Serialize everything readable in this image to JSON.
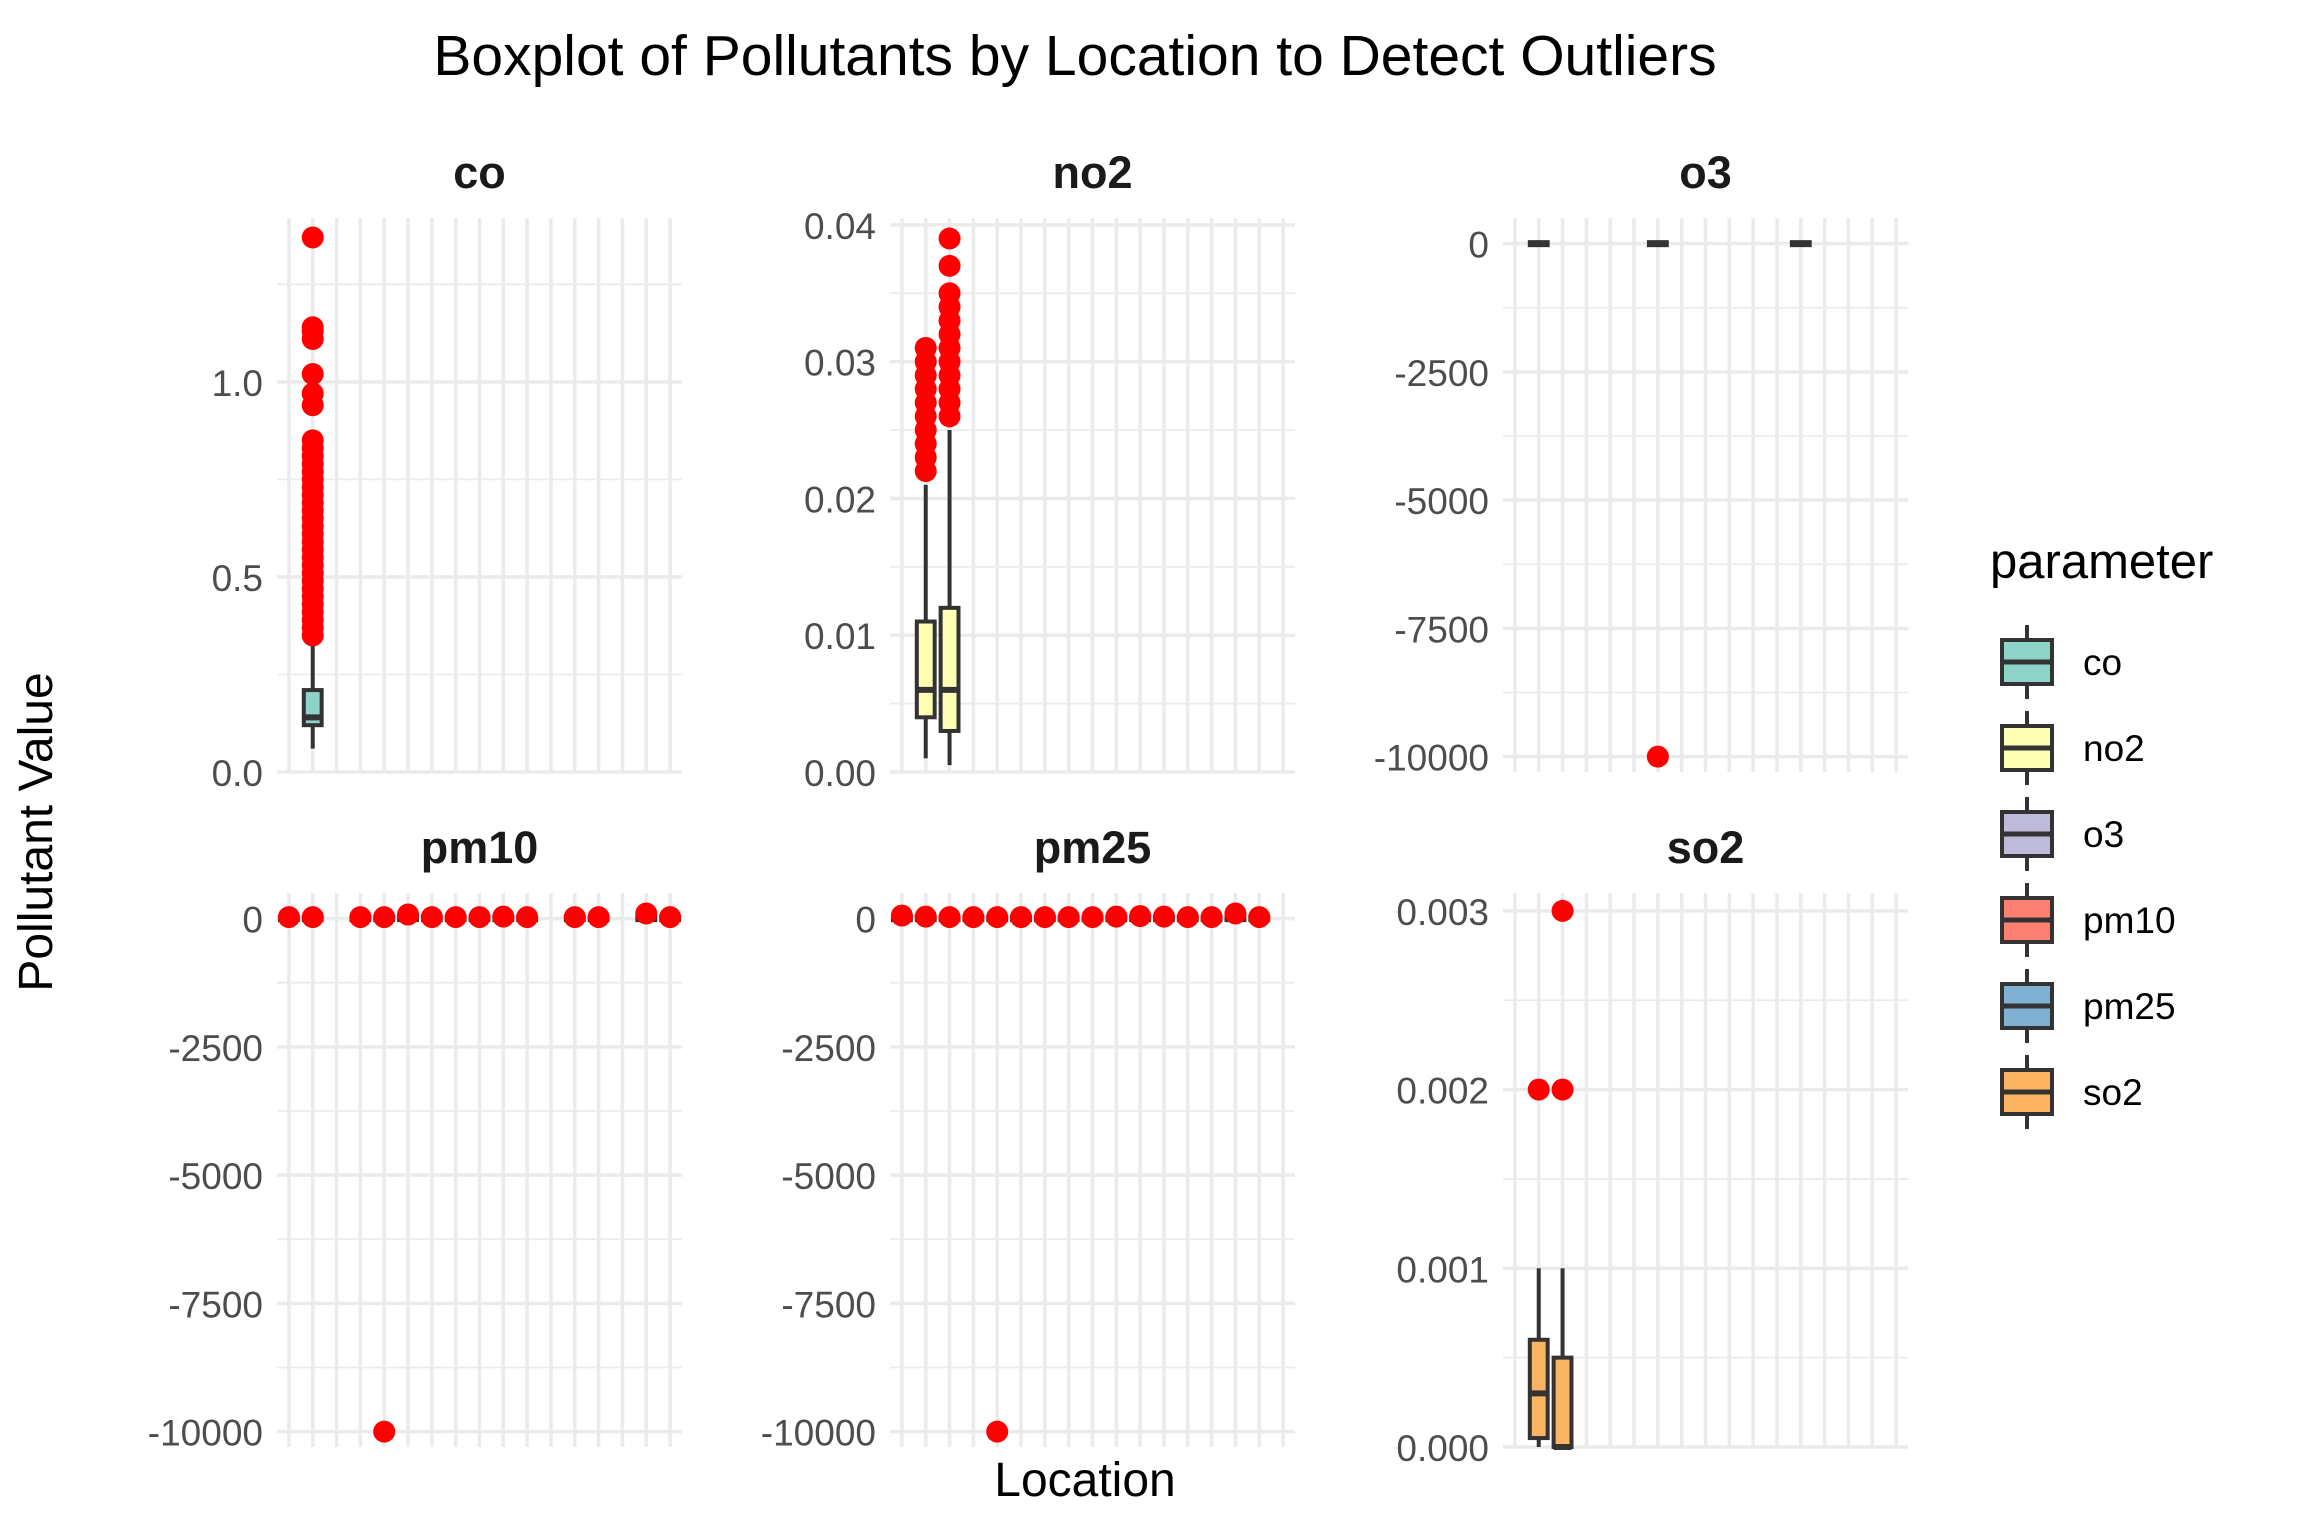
{
  "title": "Boxplot of Pollutants by Location to Detect Outliers",
  "xlabel": "Location",
  "ylabel": "Pollutant Value",
  "legend": {
    "title": "parameter",
    "items": [
      {
        "label": "co",
        "color": "#8DD3C7"
      },
      {
        "label": "no2",
        "color": "#FFFFB3"
      },
      {
        "label": "o3",
        "color": "#BEBADA"
      },
      {
        "label": "pm10",
        "color": "#FB8072"
      },
      {
        "label": "pm25",
        "color": "#80B1D3"
      },
      {
        "label": "so2",
        "color": "#FDB462"
      }
    ]
  },
  "colors": {
    "outlier": "#FF0000",
    "grid": "#EBEBEB",
    "box_line": "#333333",
    "text": "#000000",
    "tick_text": "#4D4D4D"
  },
  "chart_data": [
    {
      "type": "boxplot",
      "facet": "co",
      "fill": "#8DD3C7",
      "ylim": [
        0,
        1.42
      ],
      "yticks": [
        0.0,
        0.5,
        1.0
      ],
      "ytick_labels": [
        "0.0",
        "0.5",
        "1.0"
      ],
      "n_locations": 16,
      "boxes": [
        {
          "loc": 2,
          "whisker_low": 0.06,
          "q1": 0.12,
          "median": 0.14,
          "q3": 0.21,
          "whisker_high": 0.34,
          "outliers": [
            0.35,
            0.37,
            0.39,
            0.41,
            0.43,
            0.45,
            0.47,
            0.49,
            0.51,
            0.53,
            0.55,
            0.57,
            0.59,
            0.61,
            0.63,
            0.65,
            0.67,
            0.69,
            0.71,
            0.73,
            0.75,
            0.77,
            0.79,
            0.81,
            0.83,
            0.85,
            0.94,
            0.97,
            1.02,
            1.11,
            1.13,
            1.14,
            1.37
          ]
        }
      ]
    },
    {
      "type": "boxplot",
      "facet": "no2",
      "fill": "#FFFFB3",
      "ylim": [
        0,
        0.0405
      ],
      "yticks": [
        0.0,
        0.01,
        0.02,
        0.03,
        0.04
      ],
      "ytick_labels": [
        "0.00",
        "0.01",
        "0.02",
        "0.03",
        "0.04"
      ],
      "n_locations": 16,
      "boxes": [
        {
          "loc": 2,
          "whisker_low": 0.001,
          "q1": 0.004,
          "median": 0.006,
          "q3": 0.011,
          "whisker_high": 0.021,
          "outliers": [
            0.022,
            0.023,
            0.024,
            0.025,
            0.026,
            0.027,
            0.028,
            0.029,
            0.03,
            0.031
          ]
        },
        {
          "loc": 3,
          "whisker_low": 0.0005,
          "q1": 0.003,
          "median": 0.006,
          "q3": 0.012,
          "whisker_high": 0.025,
          "outliers": [
            0.026,
            0.027,
            0.028,
            0.029,
            0.03,
            0.031,
            0.032,
            0.033,
            0.034,
            0.035,
            0.037,
            0.039
          ]
        }
      ]
    },
    {
      "type": "boxplot",
      "facet": "o3",
      "fill": "#BEBADA",
      "ylim": [
        -10300,
        500
      ],
      "yticks": [
        0,
        -2500,
        -5000,
        -7500,
        -10000
      ],
      "ytick_labels": [
        "0",
        "-2500",
        "-5000",
        "-7500",
        "-10000"
      ],
      "n_locations": 16,
      "boxes": [
        {
          "loc": 2,
          "whisker_low": 0,
          "q1": 0,
          "median": 0,
          "q3": 0,
          "whisker_high": 0,
          "outliers": []
        },
        {
          "loc": 7,
          "whisker_low": 0,
          "q1": 0,
          "median": 0,
          "q3": 0,
          "whisker_high": 0,
          "outliers": [
            -10000
          ]
        },
        {
          "loc": 13,
          "whisker_low": 0,
          "q1": 0,
          "median": 0,
          "q3": 0,
          "whisker_high": 0,
          "outliers": []
        }
      ]
    },
    {
      "type": "boxplot",
      "facet": "pm10",
      "fill": "#FB8072",
      "ylim": [
        -10300,
        500
      ],
      "yticks": [
        0,
        -2500,
        -5000,
        -7500,
        -10000
      ],
      "ytick_labels": [
        "0",
        "-2500",
        "-5000",
        "-7500",
        "-10000"
      ],
      "n_locations": 16,
      "boxes": [
        {
          "loc": 1,
          "whisker_low": 0,
          "q1": 0,
          "median": 0,
          "q3": 0,
          "whisker_high": 0,
          "outliers": [
            30
          ]
        },
        {
          "loc": 2,
          "whisker_low": 0,
          "q1": 0,
          "median": 0,
          "q3": 0,
          "whisker_high": 0,
          "outliers": [
            30
          ]
        },
        {
          "loc": 4,
          "whisker_low": 0,
          "q1": 0,
          "median": 0,
          "q3": 0,
          "whisker_high": 0,
          "outliers": [
            30
          ]
        },
        {
          "loc": 5,
          "whisker_low": 0,
          "q1": 0,
          "median": 0,
          "q3": 0,
          "whisker_high": 0,
          "outliers": [
            30,
            -10000
          ]
        },
        {
          "loc": 6,
          "whisker_low": 0,
          "q1": 0,
          "median": 0,
          "q3": 0,
          "whisker_high": 0,
          "outliers": [
            80
          ]
        },
        {
          "loc": 7,
          "whisker_low": 0,
          "q1": 0,
          "median": 0,
          "q3": 0,
          "whisker_high": 0,
          "outliers": [
            30
          ]
        },
        {
          "loc": 8,
          "whisker_low": 0,
          "q1": 0,
          "median": 0,
          "q3": 0,
          "whisker_high": 0,
          "outliers": [
            30
          ]
        },
        {
          "loc": 9,
          "whisker_low": 0,
          "q1": 0,
          "median": 0,
          "q3": 0,
          "whisker_high": 0,
          "outliers": [
            30
          ]
        },
        {
          "loc": 10,
          "whisker_low": 0,
          "q1": 0,
          "median": 0,
          "q3": 0,
          "whisker_high": 0,
          "outliers": [
            40
          ]
        },
        {
          "loc": 11,
          "whisker_low": 0,
          "q1": 0,
          "median": 0,
          "q3": 0,
          "whisker_high": 0,
          "outliers": [
            30
          ]
        },
        {
          "loc": 13,
          "whisker_low": 0,
          "q1": 0,
          "median": 0,
          "q3": 0,
          "whisker_high": 0,
          "outliers": [
            30
          ]
        },
        {
          "loc": 14,
          "whisker_low": 0,
          "q1": 0,
          "median": 0,
          "q3": 0,
          "whisker_high": 0,
          "outliers": [
            30
          ]
        },
        {
          "loc": 16,
          "whisker_low": 0,
          "q1": 0,
          "median": 0,
          "q3": 0,
          "whisker_high": 0,
          "outliers": [
            100
          ]
        },
        {
          "loc": 17,
          "whisker_low": 0,
          "q1": 0,
          "median": 0,
          "q3": 0,
          "whisker_high": 0,
          "outliers": [
            30
          ]
        }
      ]
    },
    {
      "type": "boxplot",
      "facet": "pm25",
      "fill": "#80B1D3",
      "ylim": [
        -10300,
        500
      ],
      "yticks": [
        0,
        -2500,
        -5000,
        -7500,
        -10000
      ],
      "ytick_labels": [
        "0",
        "-2500",
        "-5000",
        "-7500",
        "-10000"
      ],
      "n_locations": 16,
      "boxes": [
        {
          "loc": 1,
          "whisker_low": 0,
          "q1": 0,
          "median": 0,
          "q3": 0,
          "whisker_high": 0,
          "outliers": [
            60
          ]
        },
        {
          "loc": 2,
          "whisker_low": 0,
          "q1": 0,
          "median": 0,
          "q3": 0,
          "whisker_high": 0,
          "outliers": [
            40
          ]
        },
        {
          "loc": 3,
          "whisker_low": 0,
          "q1": 0,
          "median": 0,
          "q3": 0,
          "whisker_high": 0,
          "outliers": [
            30
          ]
        },
        {
          "loc": 4,
          "whisker_low": 0,
          "q1": 0,
          "median": 0,
          "q3": 0,
          "whisker_high": 0,
          "outliers": [
            30
          ]
        },
        {
          "loc": 5,
          "whisker_low": 0,
          "q1": 0,
          "median": 0,
          "q3": 0,
          "whisker_high": 0,
          "outliers": [
            30,
            -10000
          ]
        },
        {
          "loc": 6,
          "whisker_low": 0,
          "q1": 0,
          "median": 0,
          "q3": 0,
          "whisker_high": 0,
          "outliers": [
            30
          ]
        },
        {
          "loc": 7,
          "whisker_low": 0,
          "q1": 0,
          "median": 0,
          "q3": 0,
          "whisker_high": 0,
          "outliers": [
            30
          ]
        },
        {
          "loc": 8,
          "whisker_low": 0,
          "q1": 0,
          "median": 0,
          "q3": 0,
          "whisker_high": 0,
          "outliers": [
            30
          ]
        },
        {
          "loc": 9,
          "whisker_low": 0,
          "q1": 0,
          "median": 0,
          "q3": 0,
          "whisker_high": 0,
          "outliers": [
            30
          ]
        },
        {
          "loc": 10,
          "whisker_low": 0,
          "q1": 0,
          "median": 0,
          "q3": 0,
          "whisker_high": 0,
          "outliers": [
            40
          ]
        },
        {
          "loc": 11,
          "whisker_low": 0,
          "q1": 0,
          "median": 0,
          "q3": 0,
          "whisker_high": 0,
          "outliers": [
            50
          ]
        },
        {
          "loc": 12,
          "whisker_low": 0,
          "q1": 0,
          "median": 0,
          "q3": 0,
          "whisker_high": 0,
          "outliers": [
            40
          ]
        },
        {
          "loc": 13,
          "whisker_low": 0,
          "q1": 0,
          "median": 0,
          "q3": 0,
          "whisker_high": 0,
          "outliers": [
            30
          ]
        },
        {
          "loc": 14,
          "whisker_low": 0,
          "q1": 0,
          "median": 0,
          "q3": 0,
          "whisker_high": 0,
          "outliers": [
            30
          ]
        },
        {
          "loc": 15,
          "whisker_low": 0,
          "q1": 0,
          "median": 0,
          "q3": 0,
          "whisker_high": 0,
          "outliers": [
            100
          ]
        },
        {
          "loc": 16,
          "whisker_low": 0,
          "q1": 0,
          "median": 0,
          "q3": 0,
          "whisker_high": 0,
          "outliers": [
            30
          ]
        }
      ]
    },
    {
      "type": "boxplot",
      "facet": "so2",
      "fill": "#FDB462",
      "ylim": [
        0,
        0.0031
      ],
      "yticks": [
        0.0,
        0.001,
        0.002,
        0.003
      ],
      "ytick_labels": [
        "0.000",
        "0.001",
        "0.002",
        "0.003"
      ],
      "n_locations": 16,
      "boxes": [
        {
          "loc": 2,
          "whisker_low": 0.0,
          "q1": 5e-05,
          "median": 0.0003,
          "q3": 0.0006,
          "whisker_high": 0.001,
          "outliers": [
            0.002
          ]
        },
        {
          "loc": 3,
          "whisker_low": 0.0,
          "q1": 0.0,
          "median": 0.0,
          "q3": 0.0005,
          "whisker_high": 0.001,
          "outliers": [
            0.002,
            0.003
          ]
        }
      ]
    }
  ]
}
